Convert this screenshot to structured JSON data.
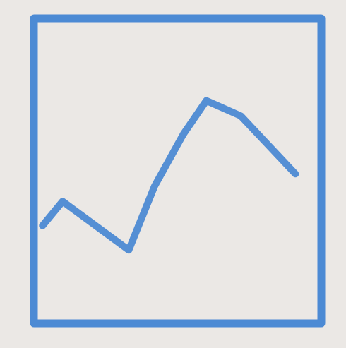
{
  "chart_data": {
    "type": "line",
    "x": [
      3,
      10,
      33,
      42,
      52,
      60,
      72,
      81,
      91
    ],
    "values": [
      32,
      40,
      24,
      45,
      62,
      73,
      68,
      59,
      49
    ],
    "xlim": [
      0,
      100
    ],
    "ylim": [
      0,
      100
    ],
    "color": "#3b7fd1",
    "line_style": "solid",
    "tick_labels": false,
    "grid": false
  }
}
